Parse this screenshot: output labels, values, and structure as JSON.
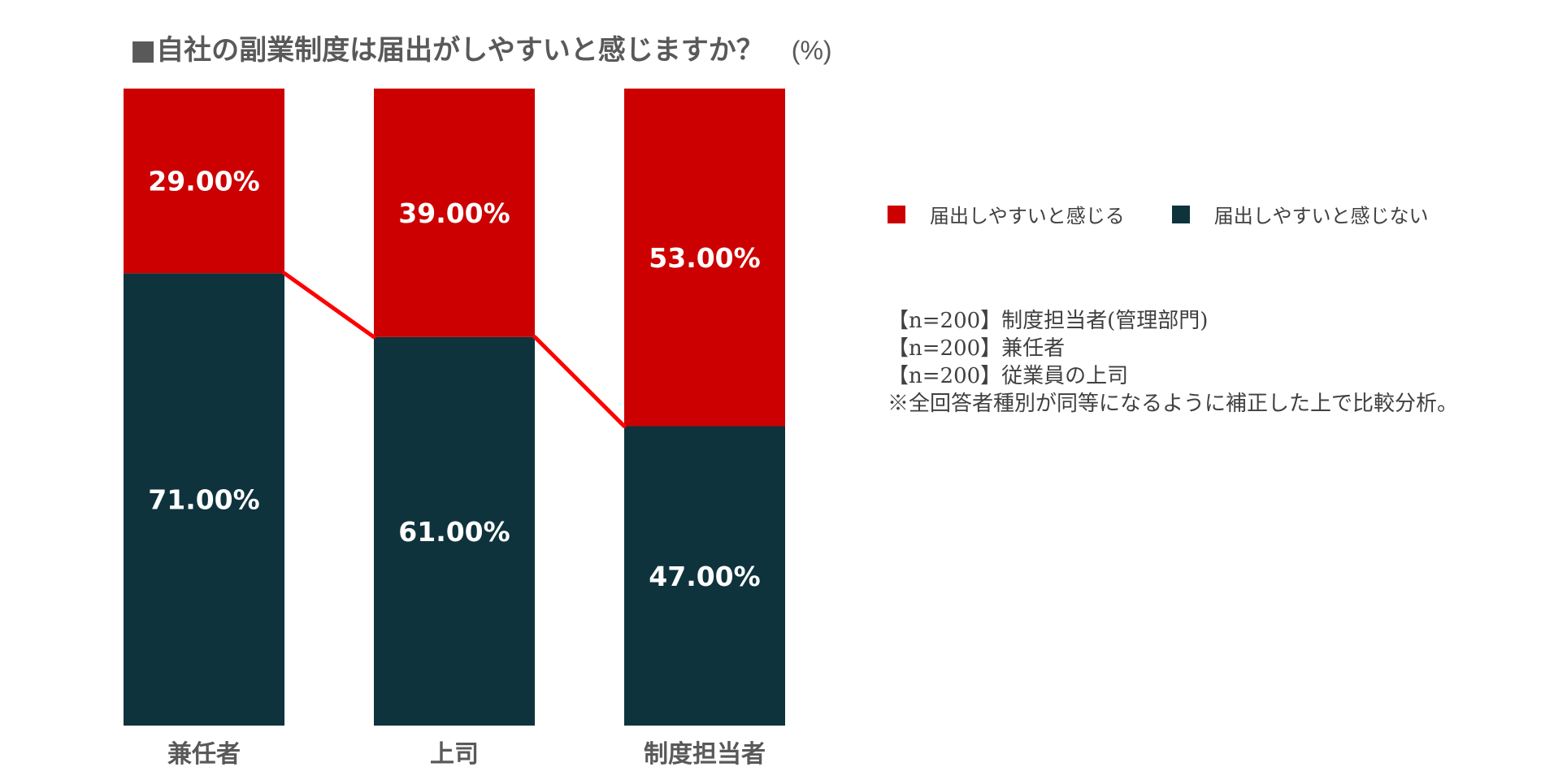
{
  "title": "■自社の副業制度は届出がしやすいと感じますか？",
  "unit_label": "(%)",
  "legend": [
    {
      "label": "届出しやすいと感じる",
      "color": "#cc0000"
    },
    {
      "label": "届出しやすいと感じない",
      "color": "#0e333d"
    }
  ],
  "notes": [
    "【n=200】制度担当者(管理部門)",
    "【n=200】兼任者",
    "【n=200】従業員の上司",
    "※全回答者種別が同等になるように補正した上で比較分析。"
  ],
  "chart_data": {
    "type": "bar",
    "stacked": true,
    "orientation": "vertical",
    "title": "■自社の副業制度は届出がしやすいと感じますか？",
    "ylabel": "(%)",
    "ylim": [
      0,
      100
    ],
    "grid": false,
    "legend_position": "right",
    "categories": [
      "兼任者",
      "上司",
      "制度担当者"
    ],
    "series": [
      {
        "name": "届出しやすいと感じない",
        "values": [
          71,
          61,
          47
        ],
        "labels": [
          "71.00%",
          "61.00%",
          "47.00%"
        ],
        "color": "#0e333d"
      },
      {
        "name": "届出しやすいと感じる",
        "values": [
          29,
          39,
          53
        ],
        "labels": [
          "29.00%",
          "39.00%",
          "53.00%"
        ],
        "color": "#cc0000"
      }
    ],
    "connector_color": "#ff0000"
  }
}
